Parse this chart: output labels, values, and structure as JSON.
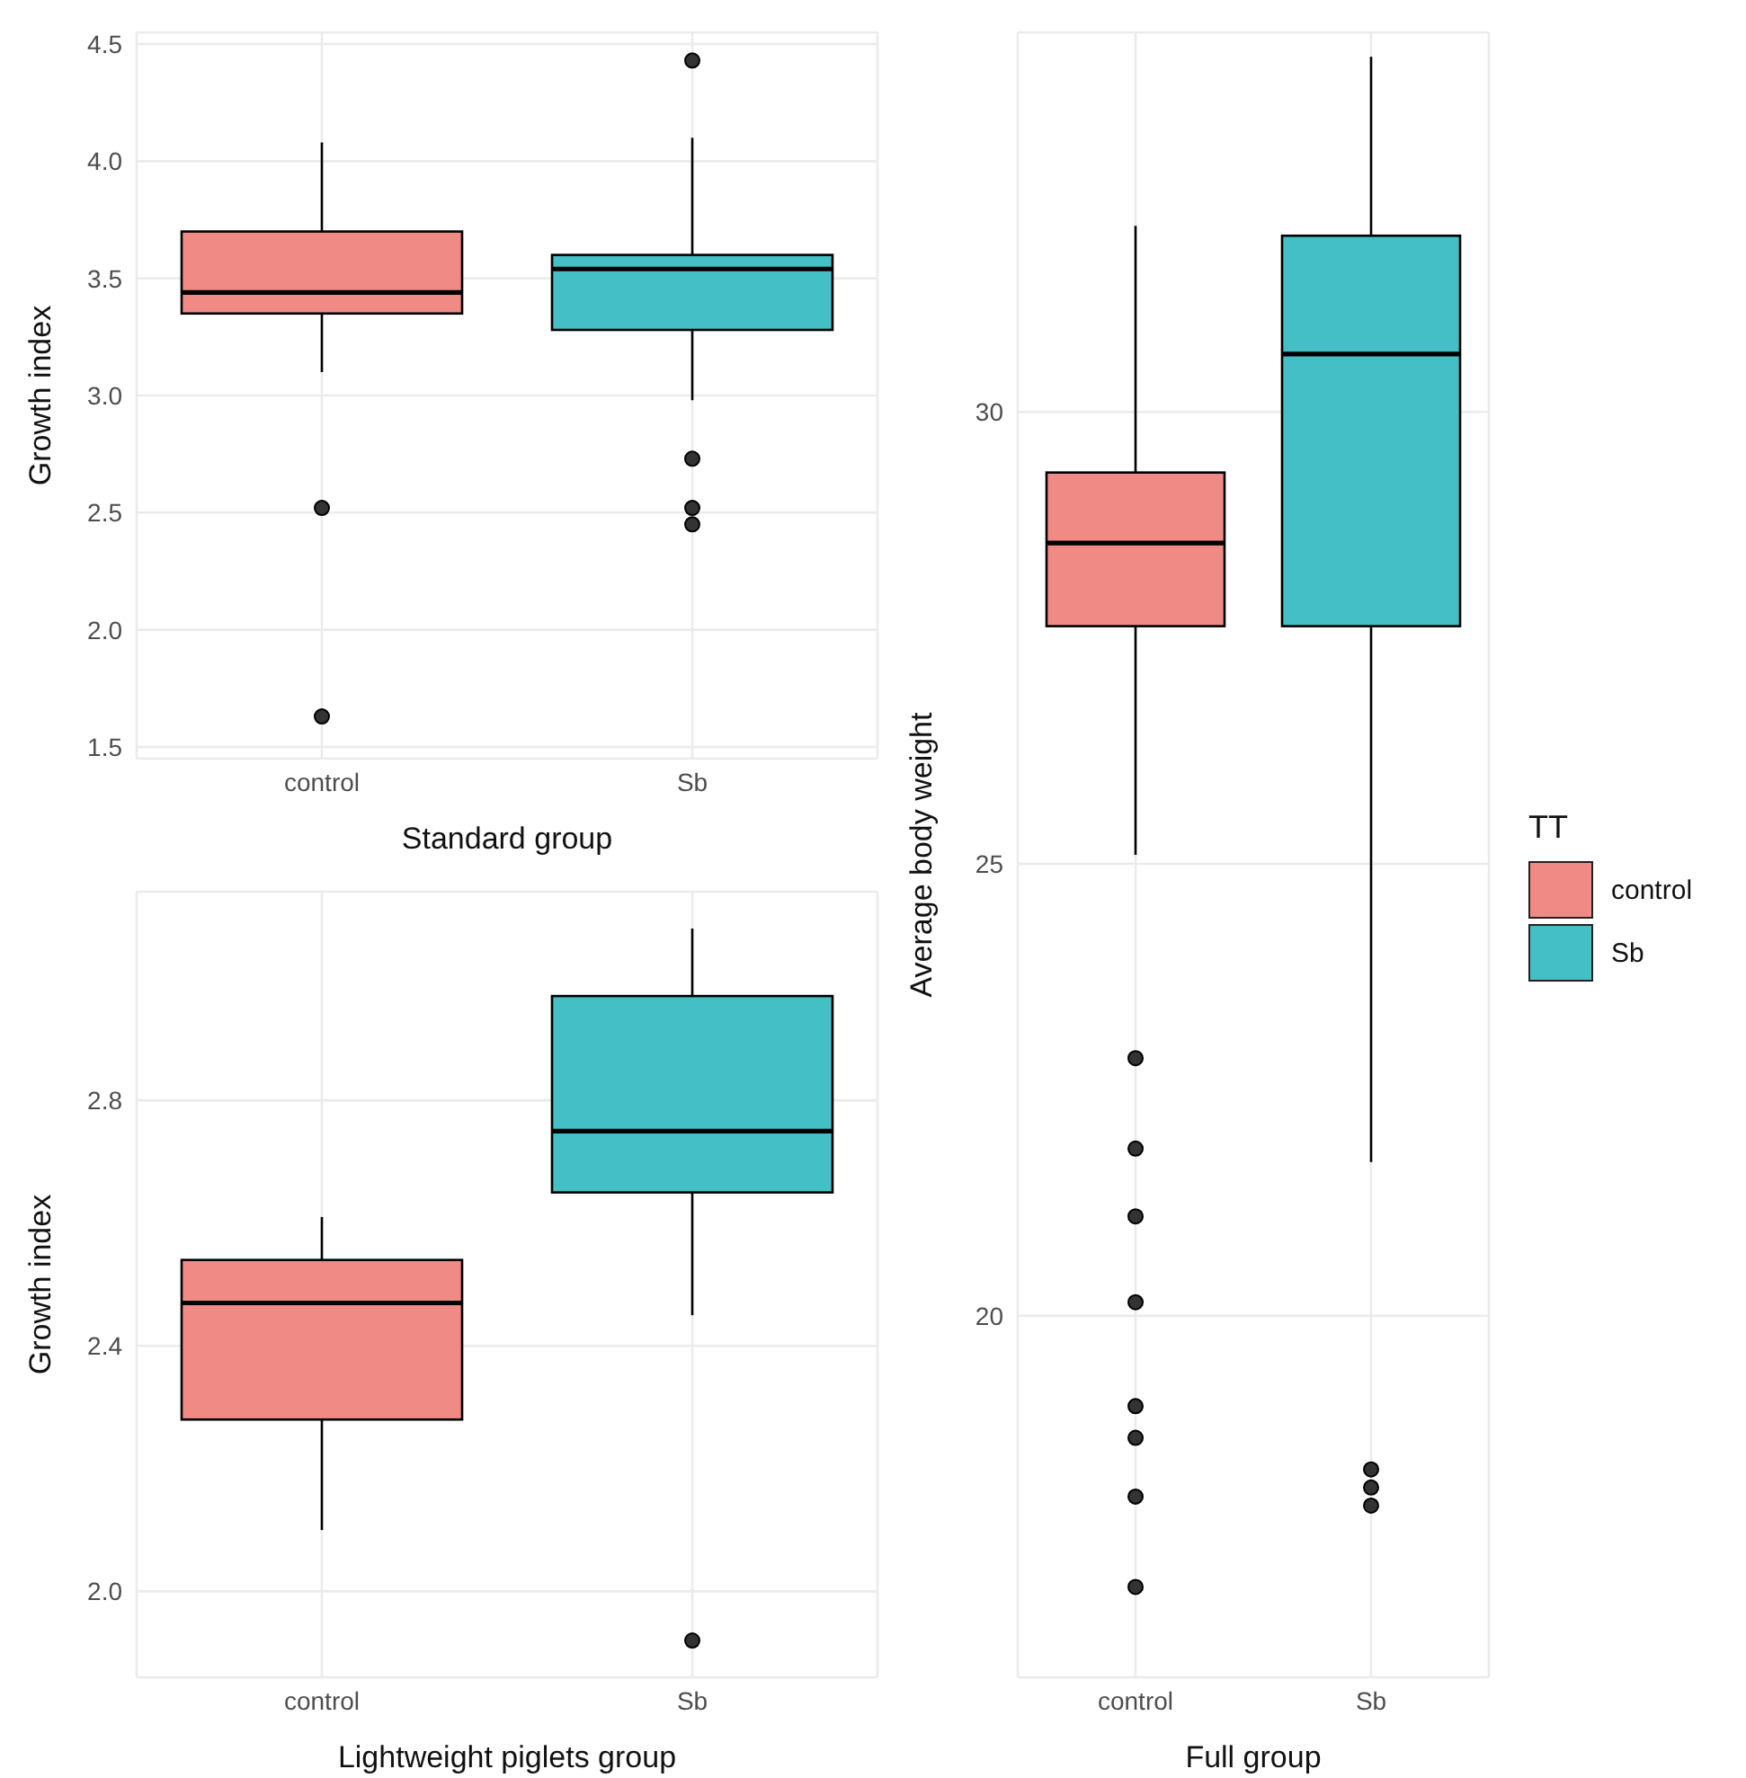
{
  "chart_data": [
    {
      "type": "box",
      "xlabel": "Standard group",
      "ylabel": "Growth index",
      "categories": [
        "control",
        "Sb"
      ],
      "ylim": [
        1.45,
        4.55
      ],
      "yticks": [
        1.5,
        {
          "value": 2,
          "label": "2.0"
        },
        2.5,
        {
          "value": 3,
          "label": "3.0"
        },
        3.5,
        {
          "value": 4,
          "label": "4.0"
        },
        4.5
      ],
      "grid": true,
      "legend": false,
      "series": [
        {
          "color": "#f08a84",
          "boxes": [
            {
              "low": 3.1,
              "q1": 3.35,
              "median": 3.44,
              "q3": 3.7,
              "high": 4.08,
              "outliers": [
                2.52,
                1.63
              ]
            },
            null
          ]
        },
        {
          "color": "#43bfc5",
          "boxes": [
            null,
            {
              "low": 2.98,
              "q1": 3.28,
              "median": 3.54,
              "q3": 3.6,
              "high": 4.1,
              "outliers": [
                4.43,
                2.73,
                2.52,
                2.45
              ]
            }
          ]
        }
      ]
    },
    {
      "type": "box",
      "xlabel": "Lightweight piglets group",
      "ylabel": "Growth index",
      "categories": [
        "control",
        "Sb"
      ],
      "ylim": [
        1.86,
        3.14
      ],
      "yticks": [
        {
          "value": 2,
          "label": "2.0"
        },
        2.4,
        2.8
      ],
      "grid": true,
      "legend": false,
      "series": [
        {
          "color": "#f08a84",
          "boxes": [
            {
              "low": 2.1,
              "q1": 2.28,
              "median": 2.47,
              "q3": 2.54,
              "high": 2.61
            },
            null
          ]
        },
        {
          "color": "#43bfc5",
          "boxes": [
            null,
            {
              "low": 2.45,
              "q1": 2.65,
              "median": 2.75,
              "q3": 2.97,
              "high": 3.08,
              "outliers": [
                1.92
              ]
            }
          ]
        }
      ]
    },
    {
      "type": "box",
      "xlabel": "Full group",
      "ylabel": "Average body weight",
      "legend_title": "TT",
      "categories": [
        "control",
        "Sb"
      ],
      "ylim": [
        16,
        34.2
      ],
      "yticks": [
        20,
        25,
        30
      ],
      "grid": true,
      "legend": "right",
      "series": [
        {
          "name": "control",
          "color": "#f08a84",
          "boxes": [
            {
              "low": 25.1,
              "q1": 27.63,
              "median": 28.55,
              "q3": 29.33,
              "high": 32.06,
              "outliers": [
                22.85,
                21.85,
                21.1,
                20.15,
                19.0,
                18.65,
                18.0,
                17.0
              ]
            },
            null
          ]
        },
        {
          "name": "Sb",
          "color": "#43bfc5",
          "boxes": [
            null,
            {
              "low": 21.7,
              "q1": 27.63,
              "median": 30.64,
              "q3": 31.95,
              "high": 33.93,
              "outliers": [
                18.3,
                18.1,
                17.9
              ]
            }
          ]
        }
      ]
    }
  ]
}
